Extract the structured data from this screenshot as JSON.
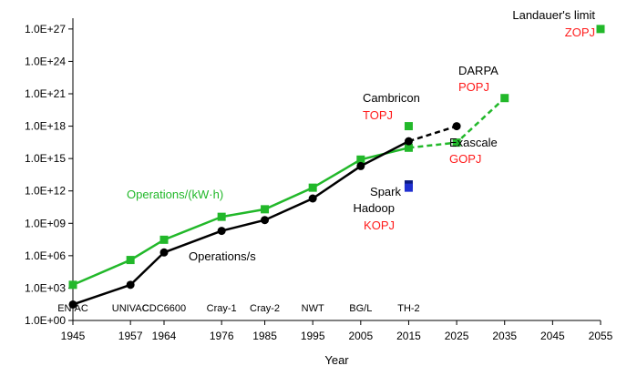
{
  "chart_data": {
    "type": "line",
    "title": "",
    "xlabel": "Year",
    "ylabel": "",
    "y_scale": "log10",
    "xlim": [
      1945,
      2055
    ],
    "ylim": [
      "1.0E+00",
      "1.0E+28"
    ],
    "x_ticks": [
      "1945",
      "1957",
      "1964",
      "1976",
      "1985",
      "1995",
      "2005",
      "2015",
      "2025",
      "2035",
      "2045",
      "2055"
    ],
    "y_ticks": [
      "1.0E+00",
      "1.0E+03",
      "1.0E+06",
      "1.0E+09",
      "1.0E+12",
      "1.0E+15",
      "1.0E+18",
      "1.0E+21",
      "1.0E+24",
      "1.0E+27"
    ],
    "grid": false,
    "colors": {
      "green": "#22b82a",
      "black": "#000000",
      "red": "#ff1a1a",
      "blue": "#1f2fd0",
      "navy": "#0a1a80"
    },
    "series": [
      {
        "name": "Operations/(kW·h)",
        "color": "#22b82a",
        "marker": "square",
        "x": [
          "1945",
          "1957",
          "1964",
          "1976",
          "1985",
          "1995",
          "2005",
          "2015"
        ],
        "y": [
          "2E+03",
          "4E+05",
          "3E+07",
          "4E+09",
          "2E+10",
          "2E+12",
          "8E+14",
          "1E+16"
        ]
      },
      {
        "name": "Operations/s",
        "color": "#000000",
        "marker": "circle",
        "x": [
          "1945",
          "1957",
          "1964",
          "1976",
          "1985",
          "1995",
          "2005",
          "2015"
        ],
        "y": [
          "3E+01",
          "2E+03",
          "2E+06",
          "2E+08",
          "2E+09",
          "2E+11",
          "2E+14",
          "4E+16"
        ]
      }
    ],
    "projections": [
      {
        "name": "Operations/s projection",
        "color": "#000000",
        "dashed": true,
        "x": [
          "2015",
          "2025"
        ],
        "y": [
          "4E+16",
          "1E+18"
        ],
        "end_marker": "circle"
      },
      {
        "name": "Operations/(kW·h) projection",
        "color": "#22b82a",
        "dashed": true,
        "x": [
          "2015",
          "2025",
          "2035"
        ],
        "y": [
          "1E+16",
          "3E+16",
          "4E+20"
        ],
        "end_marker": "square"
      }
    ],
    "points": [
      {
        "x": "2015",
        "y": "1E+18",
        "color": "#22b82a"
      },
      {
        "x": "2015",
        "y": "4E+12",
        "color": "#0a1a80"
      },
      {
        "x": "2015",
        "y": "2E+12",
        "color": "#1f2fd0"
      },
      {
        "x": "2055",
        "y": "1E+27",
        "color": "#22b82a"
      }
    ],
    "era_labels": [
      {
        "x": "1945",
        "text": "ENIAC"
      },
      {
        "x": "1957",
        "text": "UNIVAC"
      },
      {
        "x": "1964",
        "text": "CDC6600"
      },
      {
        "x": "1976",
        "text": "Cray-1"
      },
      {
        "x": "1985",
        "text": "Cray-2"
      },
      {
        "x": "1995",
        "text": "NWT"
      },
      {
        "x": "2005",
        "text": "BG/L"
      },
      {
        "x": "2015",
        "text": "TH-2"
      }
    ],
    "annotations": {
      "ops_kwh": "Operations/(kW·h)",
      "ops_s": "Operations/s",
      "cambricon": "Cambricon",
      "topj": "TOPJ",
      "darpa": "DARPA",
      "popj": "POPJ",
      "exascale": "Exascale",
      "gopj": "GOPJ",
      "spark": "Spark",
      "hadoop": "Hadoop",
      "kopj": "KOPJ",
      "landauer": "Landauer's limit",
      "zopj": "ZOPJ"
    }
  }
}
